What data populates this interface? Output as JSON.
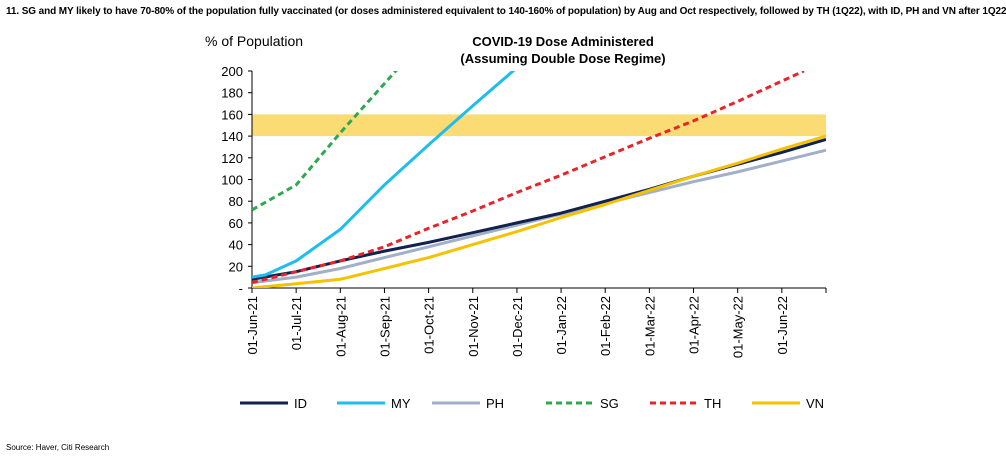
{
  "heading": "11. SG and MY likely to have 70-80% of the population fully vaccinated (or doses administered equivalent to 140-160% of population) by Aug and Oct respectively, followed by TH (1Q22), with ID, PH and VN after 1Q22",
  "source": "Source: Haver, Citi Research",
  "chart_data": {
    "type": "line",
    "title": "COVID-19 Dose Administered",
    "subtitle": "(Assuming Double Dose Regime)",
    "ylabel": "% of Population",
    "xlabel": "",
    "ylim": [
      0,
      200
    ],
    "yticks": [
      0,
      20,
      40,
      60,
      80,
      100,
      120,
      140,
      160,
      180,
      200
    ],
    "ytick_labels": [
      "-",
      "20",
      "40",
      "60",
      "80",
      "100",
      "120",
      "140",
      "160",
      "180",
      "200"
    ],
    "xlim": [
      0,
      13
    ],
    "categories": [
      "01-Jun-21",
      "01-Jul-21",
      "01-Aug-21",
      "01-Sep-21",
      "01-Oct-21",
      "01-Nov-21",
      "01-Dec-21",
      "01-Jan-22",
      "01-Feb-22",
      "01-Mar-22",
      "01-Apr-22",
      "01-May-22",
      "01-Jun-22"
    ],
    "target_band": [
      140,
      160
    ],
    "series": [
      {
        "name": "ID",
        "color": "#12224f",
        "dash": "solid",
        "x": [
          0,
          1,
          2,
          3,
          4,
          5,
          6,
          7,
          8,
          9,
          10,
          11,
          12,
          13
        ],
        "values": [
          8,
          15,
          25,
          34,
          42,
          51,
          60,
          69,
          80,
          91,
          103,
          114,
          125,
          137
        ]
      },
      {
        "name": "MY",
        "color": "#1fbcee",
        "dash": "solid",
        "x": [
          0,
          0.3,
          1,
          2,
          3,
          4,
          5,
          6
        ],
        "values": [
          10,
          12,
          25,
          54,
          95,
          132,
          168,
          203
        ]
      },
      {
        "name": "PH",
        "color": "#9fb0c8",
        "dash": "solid",
        "x": [
          0,
          1,
          2,
          3,
          4,
          5,
          6,
          7,
          8,
          9,
          10,
          11,
          12,
          13
        ],
        "values": [
          5,
          10,
          18,
          28,
          38,
          48,
          58,
          68,
          78,
          88,
          98,
          107,
          117,
          127
        ]
      },
      {
        "name": "SG",
        "color": "#2da94f",
        "dash": "dashed",
        "x": [
          0,
          1,
          2,
          3.3
        ],
        "values": [
          72,
          95,
          143,
          202
        ]
      },
      {
        "name": "TH",
        "color": "#e8232a",
        "dash": "dashed",
        "x": [
          0,
          1,
          2,
          3,
          4,
          5,
          6,
          7,
          8,
          9,
          10,
          11,
          12.5
        ],
        "values": [
          5,
          15,
          25,
          38,
          55,
          71,
          88,
          104,
          121,
          138,
          154,
          172,
          200
        ]
      },
      {
        "name": "VN",
        "color": "#f6c200",
        "dash": "solid",
        "x": [
          0,
          1,
          2,
          3,
          4,
          5,
          6,
          7,
          8,
          9,
          10,
          11,
          12,
          13
        ],
        "values": [
          0,
          4,
          8,
          18,
          28,
          40,
          52,
          65,
          77,
          90,
          103,
          115,
          128,
          140
        ]
      }
    ],
    "grid": false,
    "legend_position": "bottom"
  }
}
